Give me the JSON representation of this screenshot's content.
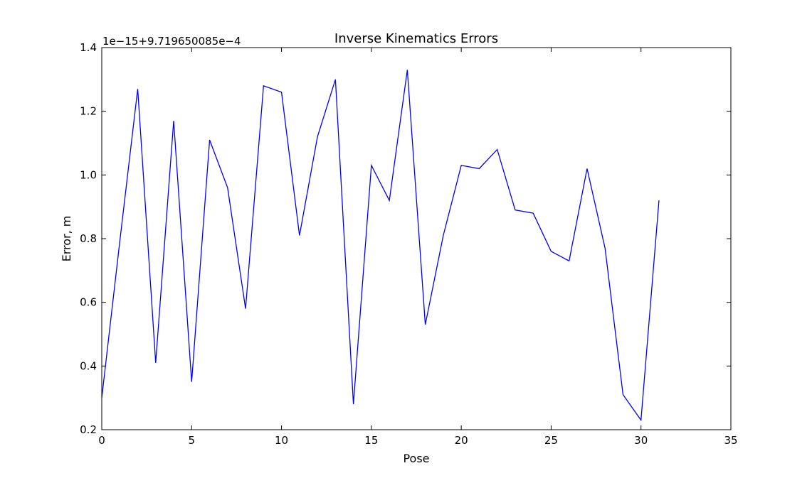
{
  "chart_data": {
    "type": "line",
    "title": "Inverse Kinematics Errors",
    "xlabel": "Pose",
    "ylabel": "Error, m",
    "offset_label": "1e−15+9.719650085e−4",
    "xlim": [
      0,
      35
    ],
    "ylim": [
      0.2,
      1.4
    ],
    "xticks": [
      0,
      5,
      10,
      15,
      20,
      25,
      30,
      35
    ],
    "yticks": [
      0.2,
      0.4,
      0.6,
      0.8,
      1.0,
      1.2,
      1.4
    ],
    "xtick_labels": [
      "0",
      "5",
      "10",
      "15",
      "20",
      "25",
      "30",
      "35"
    ],
    "ytick_labels": [
      "0.2",
      "0.4",
      "0.6",
      "0.8",
      "1.0",
      "1.2",
      "1.4"
    ],
    "grid": false,
    "series": [
      {
        "color": "#0000ff",
        "x": [
          0,
          1,
          2,
          3,
          4,
          5,
          6,
          7,
          8,
          9,
          10,
          11,
          12,
          13,
          14,
          15,
          16,
          17,
          18,
          19,
          20,
          21,
          22,
          23,
          24,
          25,
          26,
          27,
          28,
          29,
          30,
          31
        ],
        "y": [
          0.3,
          0.79,
          1.27,
          0.41,
          1.17,
          0.35,
          1.11,
          0.96,
          0.58,
          1.28,
          1.26,
          0.81,
          1.12,
          1.3,
          0.28,
          1.03,
          0.92,
          1.33,
          0.53,
          0.81,
          1.03,
          1.02,
          1.08,
          0.89,
          0.88,
          0.76,
          0.73,
          1.02,
          0.77,
          0.31,
          0.23,
          0.92
        ]
      }
    ]
  }
}
